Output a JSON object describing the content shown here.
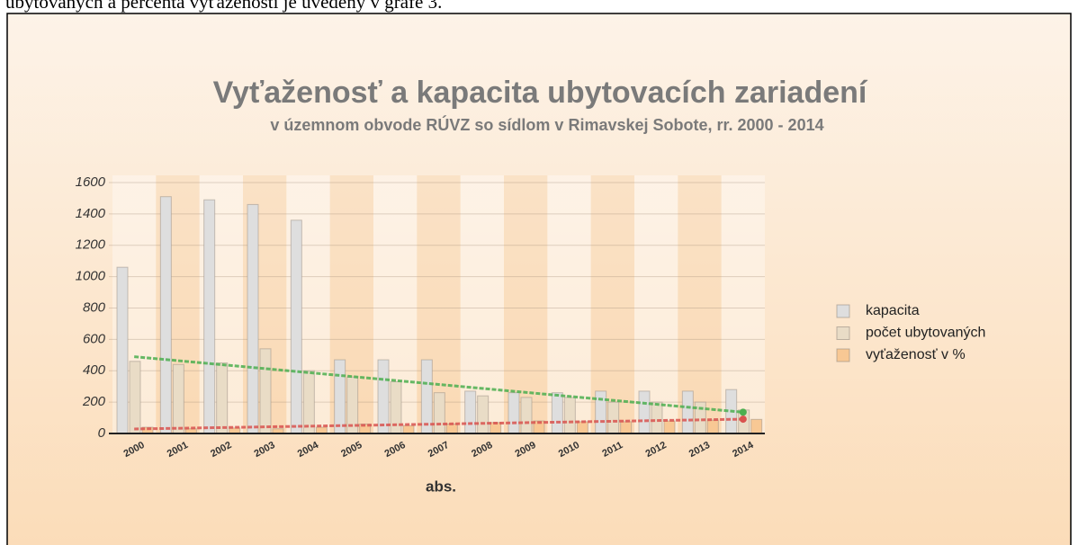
{
  "text": "ubytovaných a percenta vyťaženosti je uvedený v grafe 3.",
  "chart_data": {
    "type": "bar",
    "title": "Vyťaženosť a kapacita ubytovacích zariadení",
    "subtitle": "v územnom obvode RÚVZ so sídlom v Rimavskej Sobote, rr. 2000 - 2014",
    "x_label": "abs.",
    "categories": [
      "2000",
      "2001",
      "2002",
      "2003",
      "2004",
      "2005",
      "2006",
      "2007",
      "2008",
      "2009",
      "2010",
      "2011",
      "2012",
      "2013",
      "2014"
    ],
    "series": [
      {
        "name": "kapacita",
        "color": "#dedede",
        "values": [
          1060,
          1510,
          1490,
          1460,
          1360,
          470,
          470,
          470,
          270,
          260,
          260,
          270,
          270,
          270,
          280
        ]
      },
      {
        "name": "počet ubytovaných",
        "color": "#e9dcc6",
        "values": [
          460,
          440,
          450,
          540,
          400,
          360,
          330,
          260,
          240,
          230,
          230,
          200,
          200,
          200,
          150
        ]
      },
      {
        "name": "vyťaženosť v %",
        "color": "#f8c894",
        "values": [
          40,
          30,
          35,
          30,
          40,
          60,
          50,
          60,
          70,
          80,
          75,
          75,
          80,
          85,
          90
        ]
      }
    ],
    "ylim": [
      0,
      1600
    ],
    "yticks": [
      0,
      200,
      400,
      600,
      800,
      1000,
      1200,
      1400,
      1600
    ],
    "grid": true
  }
}
